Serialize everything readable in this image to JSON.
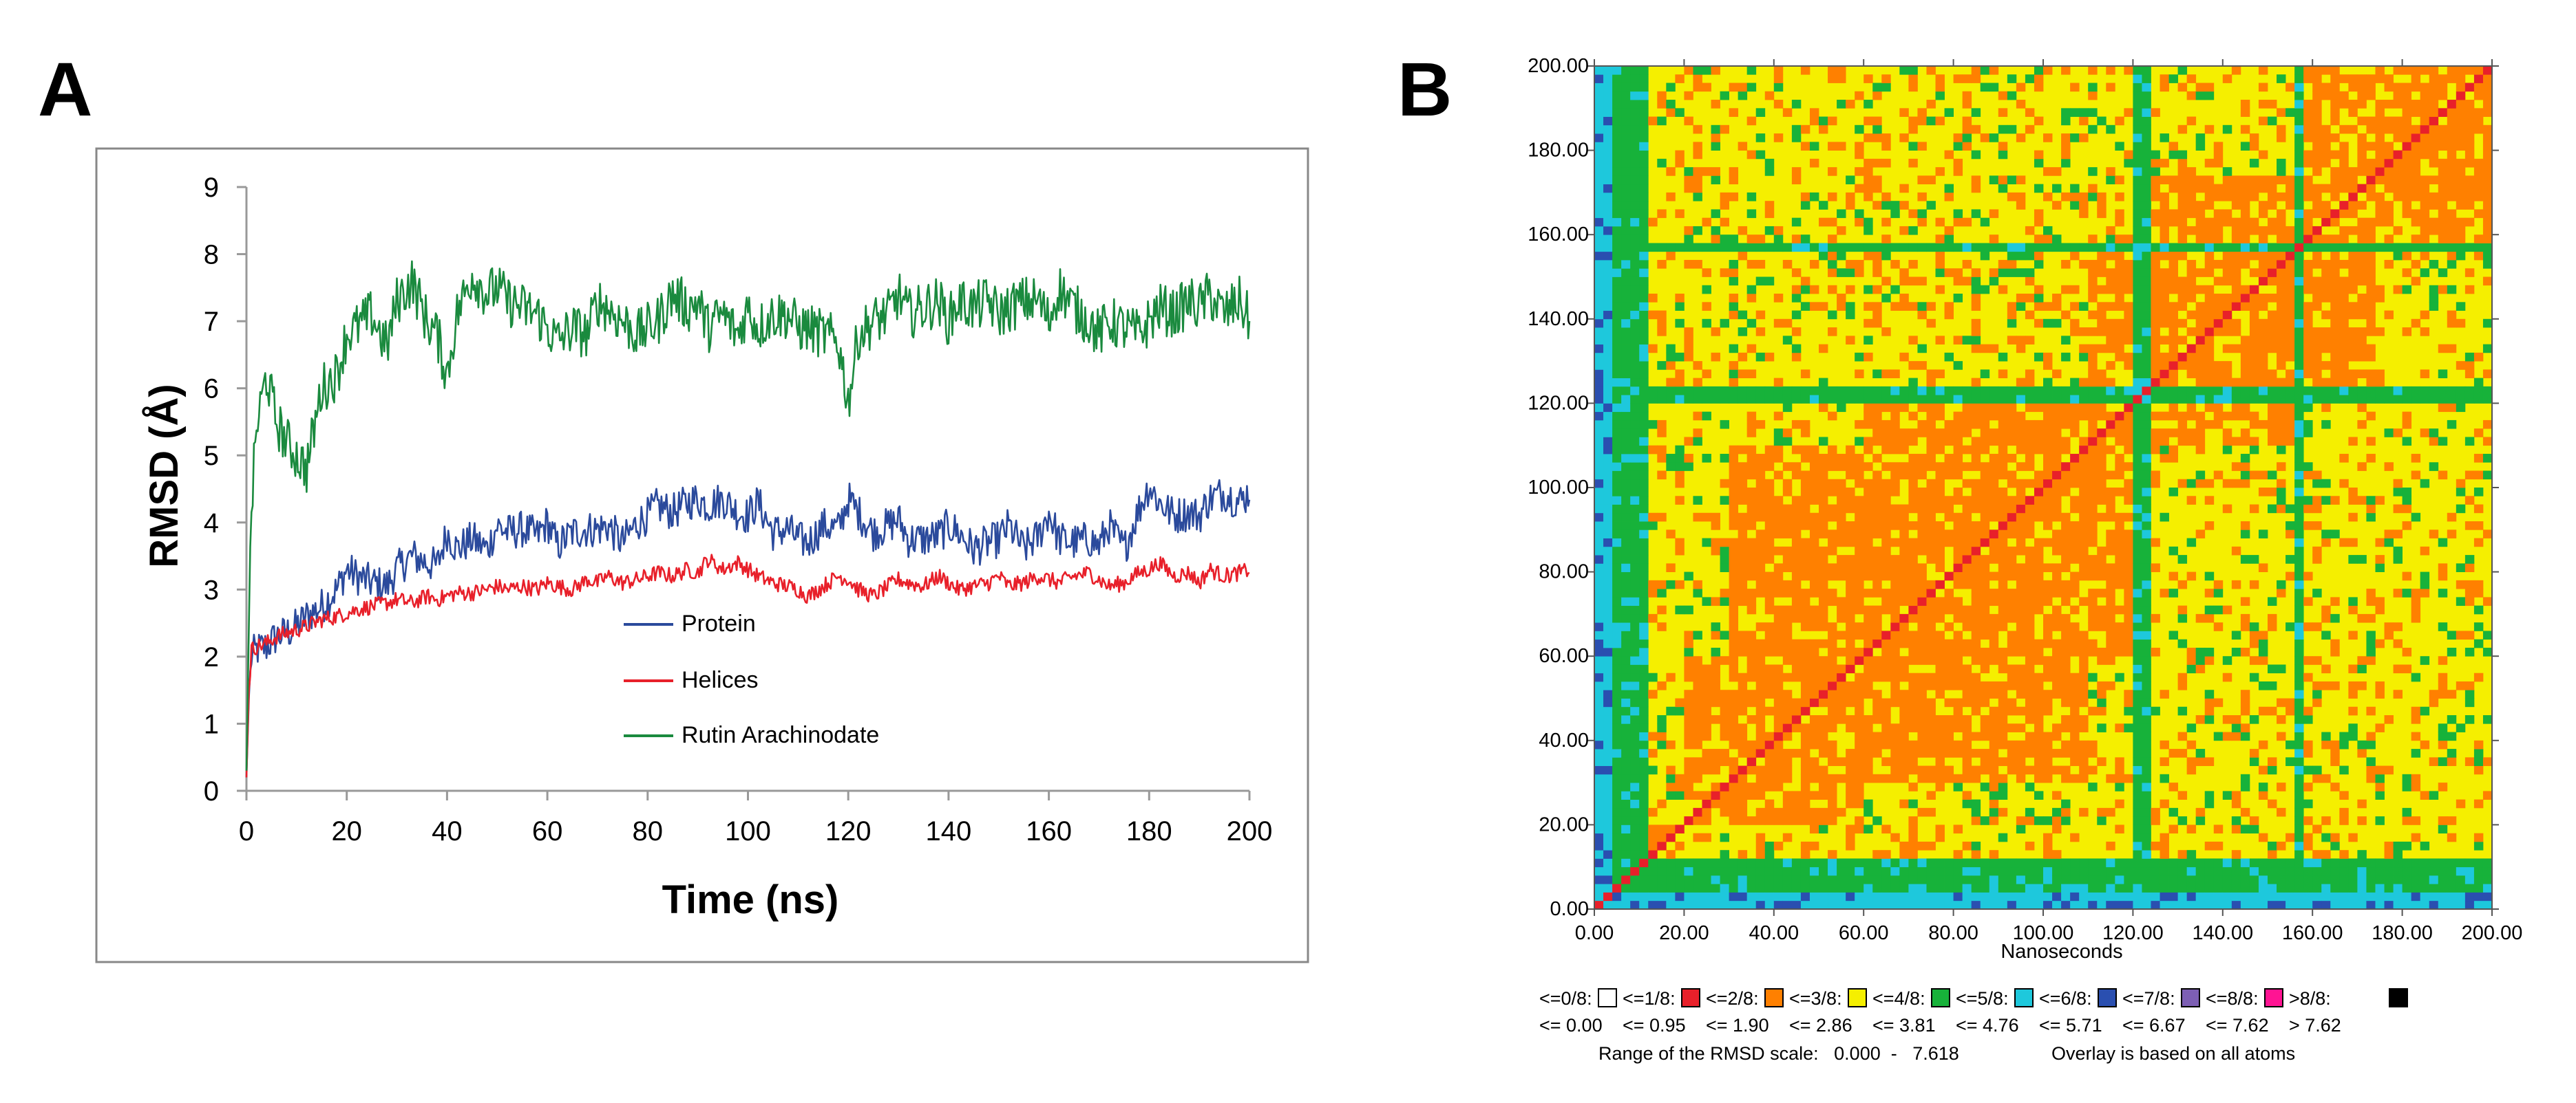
{
  "panels": {
    "a_label": "A",
    "b_label": "B"
  },
  "chart_data": [
    {
      "type": "line",
      "panel": "A",
      "title": "",
      "xlabel": "Time (ns)",
      "ylabel": "RMSD (Å)",
      "xlim": [
        0,
        200
      ],
      "ylim": [
        0,
        9
      ],
      "xticks": [
        "0",
        "20",
        "40",
        "60",
        "80",
        "100",
        "120",
        "140",
        "160",
        "180",
        "200"
      ],
      "yticks": [
        "0",
        "1",
        "2",
        "3",
        "4",
        "5",
        "6",
        "7",
        "8",
        "9"
      ],
      "legend_position": "center",
      "series": [
        {
          "name": "Protein",
          "color": "#2b4a9c",
          "x": [
            0,
            0.5,
            1,
            2,
            4,
            6,
            8,
            10,
            12,
            15,
            18,
            20,
            22,
            25,
            28,
            30,
            33,
            36,
            38,
            40,
            42,
            45,
            48,
            50,
            52,
            55,
            58,
            60,
            62,
            65,
            68,
            70,
            72,
            75,
            78,
            80,
            82,
            85,
            88,
            90,
            92,
            95,
            98,
            100,
            102,
            105,
            108,
            110,
            112,
            115,
            118,
            120,
            122,
            125,
            128,
            130,
            132,
            135,
            138,
            140,
            142,
            145,
            148,
            150,
            152,
            155,
            158,
            160,
            162,
            165,
            168,
            170,
            172,
            175,
            178,
            180,
            182,
            185,
            188,
            190,
            192,
            195,
            198,
            200
          ],
          "y": [
            0.2,
            1.4,
            2.0,
            2.1,
            2.15,
            2.3,
            2.35,
            2.45,
            2.6,
            2.75,
            3.0,
            3.3,
            3.2,
            3.1,
            3.05,
            3.3,
            3.5,
            3.4,
            3.35,
            3.85,
            3.6,
            3.75,
            3.6,
            3.95,
            3.85,
            3.9,
            3.8,
            4.0,
            3.65,
            3.85,
            3.9,
            3.9,
            3.95,
            3.7,
            4.0,
            4.1,
            4.25,
            4.15,
            4.3,
            4.35,
            4.25,
            4.35,
            4.15,
            4.1,
            4.3,
            3.85,
            3.9,
            3.75,
            3.7,
            3.95,
            3.9,
            4.35,
            4.15,
            3.85,
            3.95,
            4.05,
            3.75,
            3.75,
            3.8,
            3.95,
            3.85,
            3.6,
            3.7,
            3.75,
            3.95,
            3.6,
            3.8,
            4.15,
            3.75,
            3.7,
            3.75,
            3.65,
            3.95,
            3.6,
            4.2,
            4.55,
            4.3,
            4.1,
            4.15,
            4.1,
            4.35,
            4.45,
            4.3,
            4.45
          ]
        },
        {
          "name": "Helices",
          "color": "#e8202a",
          "x": [
            0,
            0.5,
            1,
            2,
            4,
            6,
            8,
            10,
            12,
            15,
            18,
            20,
            22,
            25,
            28,
            30,
            33,
            36,
            38,
            40,
            42,
            45,
            48,
            50,
            52,
            55,
            58,
            60,
            62,
            65,
            68,
            70,
            72,
            75,
            78,
            80,
            82,
            85,
            88,
            90,
            92,
            95,
            98,
            100,
            102,
            105,
            108,
            110,
            112,
            115,
            118,
            120,
            122,
            125,
            128,
            130,
            132,
            135,
            138,
            140,
            142,
            145,
            148,
            150,
            152,
            155,
            158,
            160,
            162,
            165,
            168,
            170,
            172,
            175,
            178,
            180,
            182,
            185,
            188,
            190,
            192,
            195,
            198,
            200
          ],
          "y": [
            0.2,
            1.5,
            2.1,
            2.15,
            2.2,
            2.3,
            2.35,
            2.4,
            2.45,
            2.55,
            2.6,
            2.65,
            2.7,
            2.75,
            2.8,
            2.85,
            2.8,
            2.9,
            2.85,
            2.9,
            2.95,
            2.95,
            3.0,
            3.05,
            3.0,
            3.05,
            3.0,
            3.1,
            3.05,
            3.0,
            3.15,
            3.1,
            3.2,
            3.1,
            3.15,
            3.2,
            3.25,
            3.2,
            3.3,
            3.25,
            3.45,
            3.3,
            3.4,
            3.3,
            3.2,
            3.1,
            3.05,
            3.0,
            2.9,
            3.05,
            3.2,
            3.15,
            3.0,
            2.9,
            3.05,
            3.15,
            3.1,
            3.05,
            3.2,
            3.1,
            3.0,
            3.05,
            3.1,
            3.2,
            3.05,
            3.1,
            3.2,
            3.15,
            3.1,
            3.2,
            3.25,
            3.15,
            3.05,
            3.1,
            3.25,
            3.3,
            3.4,
            3.2,
            3.25,
            3.1,
            3.3,
            3.2,
            3.25,
            3.3
          ]
        },
        {
          "name": "Rutin Arachinodate",
          "color": "#1a8a3e",
          "x": [
            0,
            0.5,
            1,
            2,
            4,
            6,
            8,
            10,
            12,
            15,
            18,
            20,
            22,
            25,
            28,
            30,
            33,
            36,
            38,
            40,
            42,
            45,
            48,
            50,
            52,
            55,
            58,
            60,
            62,
            65,
            68,
            70,
            72,
            75,
            78,
            80,
            82,
            85,
            88,
            90,
            92,
            95,
            98,
            100,
            102,
            105,
            108,
            110,
            112,
            115,
            118,
            120,
            122,
            125,
            128,
            130,
            132,
            135,
            138,
            140,
            142,
            145,
            148,
            150,
            152,
            155,
            158,
            160,
            162,
            165,
            168,
            170,
            172,
            175,
            178,
            180,
            182,
            185,
            188,
            190,
            192,
            195,
            198,
            200
          ],
          "y": [
            0.3,
            2.5,
            4.2,
            5.4,
            6.2,
            5.5,
            5.2,
            5.0,
            4.8,
            6.0,
            6.2,
            6.8,
            6.9,
            7.1,
            6.6,
            7.3,
            7.6,
            7.0,
            6.8,
            6.2,
            7.1,
            7.7,
            7.4,
            7.5,
            7.3,
            7.2,
            7.1,
            6.9,
            6.7,
            6.9,
            6.8,
            7.3,
            7.2,
            7.0,
            6.8,
            6.9,
            7.0,
            7.4,
            7.2,
            7.3,
            6.9,
            7.1,
            6.8,
            7.2,
            6.9,
            7.1,
            7.1,
            6.9,
            6.9,
            6.8,
            6.7,
            5.8,
            6.8,
            7.0,
            7.1,
            7.4,
            7.1,
            7.2,
            7.3,
            7.0,
            7.3,
            7.2,
            7.3,
            7.1,
            7.2,
            7.3,
            7.3,
            7.0,
            7.5,
            7.2,
            7.0,
            6.8,
            7.0,
            6.9,
            6.8,
            7.0,
            7.2,
            7.1,
            7.3,
            7.2,
            7.4,
            7.1,
            7.3,
            7.0
          ]
        }
      ]
    },
    {
      "type": "heatmap",
      "panel": "B",
      "title": "",
      "xlabel": "Nanoseconds",
      "ylabel": "",
      "xlim": [
        0,
        200
      ],
      "ylim": [
        0,
        200
      ],
      "xticks": [
        "0.00",
        "20.00",
        "40.00",
        "60.00",
        "80.00",
        "100.00",
        "120.00",
        "140.00",
        "160.00",
        "180.00",
        "200.00"
      ],
      "yticks": [
        "0.00",
        "20.00",
        "40.00",
        "60.00",
        "80.00",
        "100.00",
        "120.00",
        "140.00",
        "160.00",
        "180.00",
        "200.00"
      ],
      "scale_bins": [
        {
          "label": "<=0/8:",
          "color": "#ffffff",
          "bound": "<=  0.00"
        },
        {
          "label": "<=1/8:",
          "color": "#e8202a",
          "bound": "<=  0.95"
        },
        {
          "label": "<=2/8:",
          "color": "#ff8000",
          "bound": "<=  1.90"
        },
        {
          "label": "<=3/8:",
          "color": "#f5ef00",
          "bound": "<=  2.86"
        },
        {
          "label": "<=4/8:",
          "color": "#17b23a",
          "bound": "<=  3.81"
        },
        {
          "label": "<=5/8:",
          "color": "#1ec8dc",
          "bound": "<=  4.76"
        },
        {
          "label": "<=6/8:",
          "color": "#2a4fb0",
          "bound": "<=  5.71"
        },
        {
          "label": "<=7/8:",
          "color": "#7d5fb4",
          "bound": "<=  6.67"
        },
        {
          "label": "<=8/8:",
          "color": "#ff1493",
          "bound": "<=  7.62"
        },
        {
          "label": ">8/8:",
          "color": "#000000",
          "bound": ">  7.62"
        }
      ],
      "range_text": "Range of the RMSD scale:   0.000  -   7.618",
      "overlay_text": "Overlay is based on all atoms"
    }
  ]
}
